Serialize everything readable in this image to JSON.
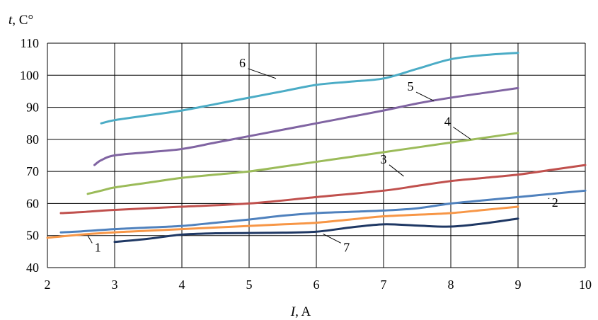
{
  "chart_data": {
    "type": "line",
    "title": "",
    "xlabel_var": "I",
    "xlabel_unit": ", A",
    "ylabel_var": "t",
    "ylabel_unit": ", C°",
    "xlim": [
      2,
      10
    ],
    "ylim": [
      40,
      110
    ],
    "x_ticks": [
      "2",
      "3",
      "4",
      "5",
      "6",
      "7",
      "8",
      "9",
      "10"
    ],
    "y_ticks": [
      "40",
      "50",
      "60",
      "70",
      "80",
      "90",
      "100",
      "110"
    ],
    "grid": true,
    "series": [
      {
        "label": "6",
        "color": "#4bacc6",
        "x": [
          2.8,
          3,
          3.5,
          4,
          4.5,
          5,
          5.5,
          6,
          6.5,
          7,
          7.5,
          8,
          8.5,
          9
        ],
        "y": [
          85,
          86,
          87.5,
          89,
          91,
          93,
          95,
          97,
          98,
          99,
          102,
          105,
          106.3,
          107
        ]
      },
      {
        "label": "5",
        "color": "#8064a2",
        "x": [
          2.7,
          2.8,
          3,
          3.5,
          4,
          4.5,
          5,
          5.5,
          6,
          6.5,
          7,
          7.5,
          8,
          8.5,
          9
        ],
        "y": [
          72,
          73.5,
          75,
          76,
          77,
          79,
          81,
          83,
          85,
          87,
          89,
          91.2,
          93,
          94.5,
          96
        ]
      },
      {
        "label": "4",
        "color": "#9bbb59",
        "x": [
          2.6,
          2.8,
          3,
          3.5,
          4,
          4.5,
          5,
          5.5,
          6,
          6.5,
          7,
          7.5,
          8,
          8.5,
          9
        ],
        "y": [
          63,
          64,
          65,
          66.5,
          68,
          69,
          70,
          71.5,
          73,
          74.5,
          76,
          77.5,
          79,
          80.5,
          82
        ]
      },
      {
        "label": "3",
        "color": "#c0504d",
        "x": [
          2.2,
          2.5,
          3,
          4,
          5,
          6,
          7,
          7.5,
          8,
          8.5,
          9,
          9.5,
          10
        ],
        "y": [
          57,
          57.3,
          58,
          59,
          60,
          62,
          64,
          65.5,
          67,
          68,
          69,
          70.5,
          72
        ]
      },
      {
        "label": "2",
        "color": "#4f81bd",
        "x": [
          2.2,
          2.5,
          3,
          3.5,
          4,
          4.5,
          5,
          5.5,
          6,
          6.5,
          7,
          7.5,
          8,
          8.5,
          9,
          9.5,
          10
        ],
        "y": [
          51,
          51.3,
          52,
          52.5,
          53,
          54,
          55,
          56.2,
          57,
          57.4,
          57.8,
          58.5,
          60,
          61,
          62,
          63,
          64
        ]
      },
      {
        "label": "1",
        "color": "#f79646",
        "x": [
          2,
          2.5,
          3,
          3.5,
          4,
          4.5,
          5,
          5.5,
          6,
          6.5,
          7,
          7.5,
          8,
          8.5,
          9
        ],
        "y": [
          49.3,
          50.3,
          51,
          51.5,
          52,
          52.5,
          53,
          53.5,
          54,
          55,
          56,
          56.5,
          57,
          58,
          59
        ]
      },
      {
        "label": "7",
        "color": "#1f3864",
        "x": [
          3,
          3.5,
          4,
          4.5,
          5,
          5.5,
          6,
          6.5,
          7,
          7.5,
          8,
          8.5,
          9
        ],
        "y": [
          48,
          49,
          50.3,
          50.7,
          50.8,
          50.9,
          51.2,
          52.5,
          53.5,
          53.1,
          52.8,
          53.8,
          55.3
        ]
      }
    ],
    "curve_labels": [
      {
        "text": "6",
        "series": 0,
        "lx": 4.9,
        "ly": 102.5,
        "ax": 5.4,
        "ay": 99
      },
      {
        "text": "5",
        "series": 1,
        "lx": 7.4,
        "ly": 95.2,
        "ax": 7.75,
        "ay": 92
      },
      {
        "text": "4",
        "series": 2,
        "lx": 7.95,
        "ly": 84.3,
        "ax": 8.3,
        "ay": 80
      },
      {
        "text": "3",
        "series": 3,
        "lx": 7.0,
        "ly": 72.5,
        "ax": 7.3,
        "ay": 68.5
      },
      {
        "text": "2",
        "series": 4,
        "lx": 9.55,
        "ly": 59.0,
        "ax": 9.45,
        "ay": 61.5
      },
      {
        "text": "1",
        "series": 5,
        "lx": 2.75,
        "ly": 45.0,
        "ax": 2.6,
        "ay": 50
      },
      {
        "text": "7",
        "series": 6,
        "lx": 6.45,
        "ly": 45.0,
        "ax": 6.1,
        "ay": 50.5
      }
    ]
  }
}
